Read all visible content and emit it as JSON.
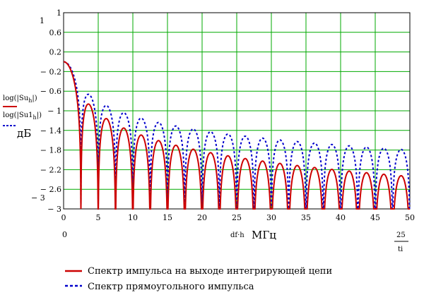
{
  "chart_data": {
    "type": "line",
    "y_axis": {
      "range": [
        -3,
        1
      ],
      "tick_values": [
        1,
        0.6,
        0.2,
        -0.2,
        -0.6,
        -1,
        -1.4,
        -1.8,
        -2.2,
        -2.6,
        -3
      ],
      "tick_labels": [
        "1",
        "0.6",
        "0.2",
        "− 0.2",
        "− 0.6",
        "− 1",
        "− 1.4",
        "− 1.8",
        "− 2.2",
        "− 2.6",
        "− 3"
      ],
      "left_labels": {
        "top": "1",
        "bottom": "− 3"
      },
      "expr1": "log(|Su",
      "expr1_sub": "h",
      "expr1_end": "|)",
      "expr2": "log(|Su1",
      "expr2_sub": "h",
      "expr2_end": "|)",
      "unit": "дБ"
    },
    "x_axis": {
      "range": [
        0,
        50
      ],
      "tick_values": [
        0,
        5,
        10,
        15,
        20,
        25,
        30,
        35,
        40,
        45,
        50
      ],
      "tick_labels": [
        "0",
        "5",
        "10",
        "15",
        "20",
        "25",
        "30",
        "35",
        "40",
        "45",
        "50"
      ],
      "left_label": "0",
      "expr": "df·h",
      "unit": "МГц",
      "right_label_num": "25",
      "right_label_den": "ti"
    },
    "grid": true,
    "legend_placement": "bottom",
    "series": [
      {
        "name": "Спектр импульса на выходе интегрирующей цепи",
        "color": "#cc0000",
        "style": "solid",
        "null_spacing": 2.5,
        "null_start": 2.5,
        "lobe_base": 1,
        "lobe_step_factor": 1.0,
        "decay": "2/x"
      },
      {
        "name": "Спектр прямоугольного импульса",
        "color": "#0000cc",
        "style": "dashed",
        "null_spacing": 2.5,
        "null_start": 2.5,
        "lobe_base": 1,
        "lobe_step_factor": 1.0,
        "decay": "1/x"
      }
    ],
    "colors": {
      "grid": "#00aa00",
      "axis": "#000000"
    }
  }
}
